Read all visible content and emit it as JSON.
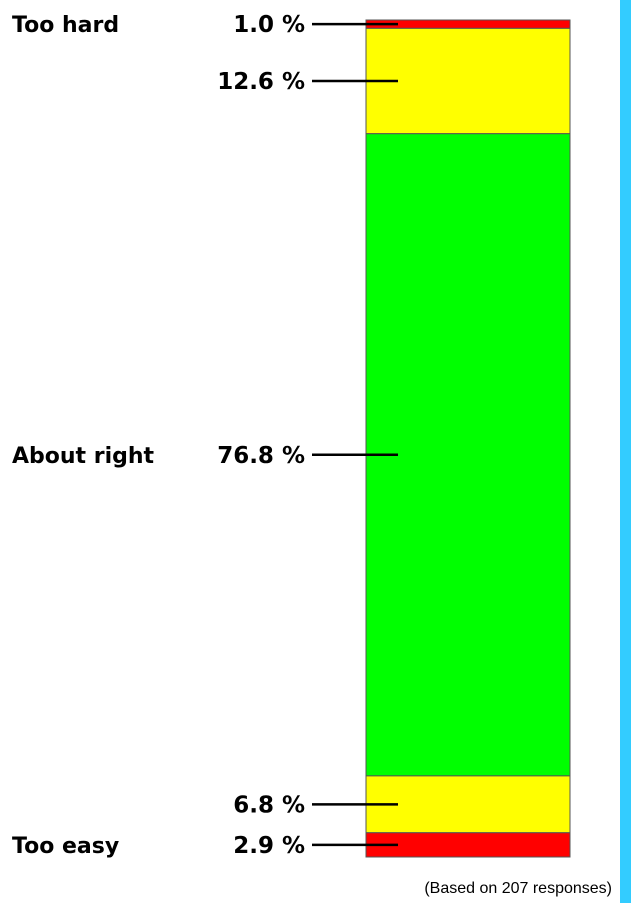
{
  "chart_data": {
    "type": "bar",
    "stacked": true,
    "orientation": "vertical",
    "categories": [
      "Too hard",
      "",
      "About right",
      "",
      "Too easy"
    ],
    "values": [
      1.0,
      12.6,
      76.8,
      6.8,
      2.9
    ],
    "value_labels": [
      "1.0 %",
      "12.6 %",
      "76.8 %",
      "6.8 %",
      "2.9 %"
    ],
    "colors": [
      "#ff0000",
      "#ffff00",
      "#00ff00",
      "#ffff00",
      "#ff0000"
    ],
    "unit": "%",
    "ylim": [
      0,
      100
    ],
    "grid": false,
    "legend": "none",
    "note": "(Based on 207 responses)"
  },
  "accent_color": "#33ccff"
}
